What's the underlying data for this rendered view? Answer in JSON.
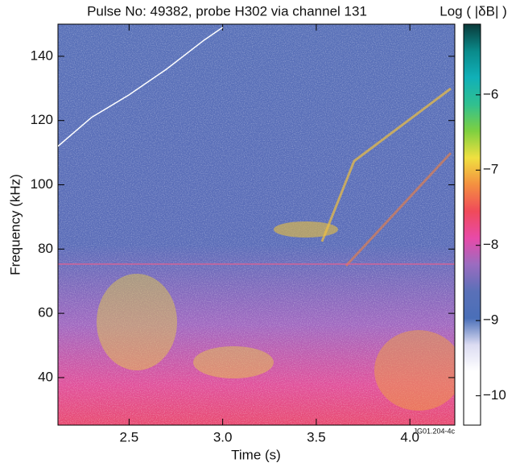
{
  "chart_data": {
    "type": "spectrogram",
    "title": "Pulse No: 49382, probe H302 via channel 131",
    "x_label": "Time (s)",
    "y_label": "Frequency (kHz)",
    "colorbar_label": "Log ( |δB| )",
    "annotation": "JG01.204-4c",
    "xlim": [
      2.12,
      4.24
    ],
    "xticks": [
      2.5,
      {
        "value": 3,
        "label": "3.0"
      },
      3.5,
      {
        "value": 4,
        "label": "4.0"
      }
    ],
    "ylim": [
      25.2,
      150
    ],
    "yticks": [
      40,
      60,
      80,
      100,
      120,
      140
    ],
    "clim": [
      -10.39,
      -5.06
    ],
    "cticks": [
      {
        "value": -6,
        "label": "−6"
      },
      {
        "value": -7,
        "label": "−7"
      },
      {
        "value": -8,
        "label": "−8"
      },
      {
        "value": -9,
        "label": "−9"
      },
      {
        "value": -10,
        "label": "−10"
      }
    ],
    "colorbar_colors": [
      "#ffffff",
      "#ffffff",
      "#ffffff",
      "#dcdcf2",
      "#4a6fb8",
      "#5a70b8",
      "#9a6cc0",
      "#e84aa8",
      "#f04a5a",
      "#f49040",
      "#f0e040",
      "#7ed040",
      "#30c090",
      "#10b0b8",
      "#0a8a8a",
      "#0a3a3a"
    ],
    "series": [
      {
        "color": "#ffffff",
        "x": [
          2.12,
          2.3,
          2.5,
          2.7,
          2.9,
          3.0
        ],
        "values": [
          112,
          121,
          128,
          136,
          145,
          149
        ]
      }
    ]
  }
}
